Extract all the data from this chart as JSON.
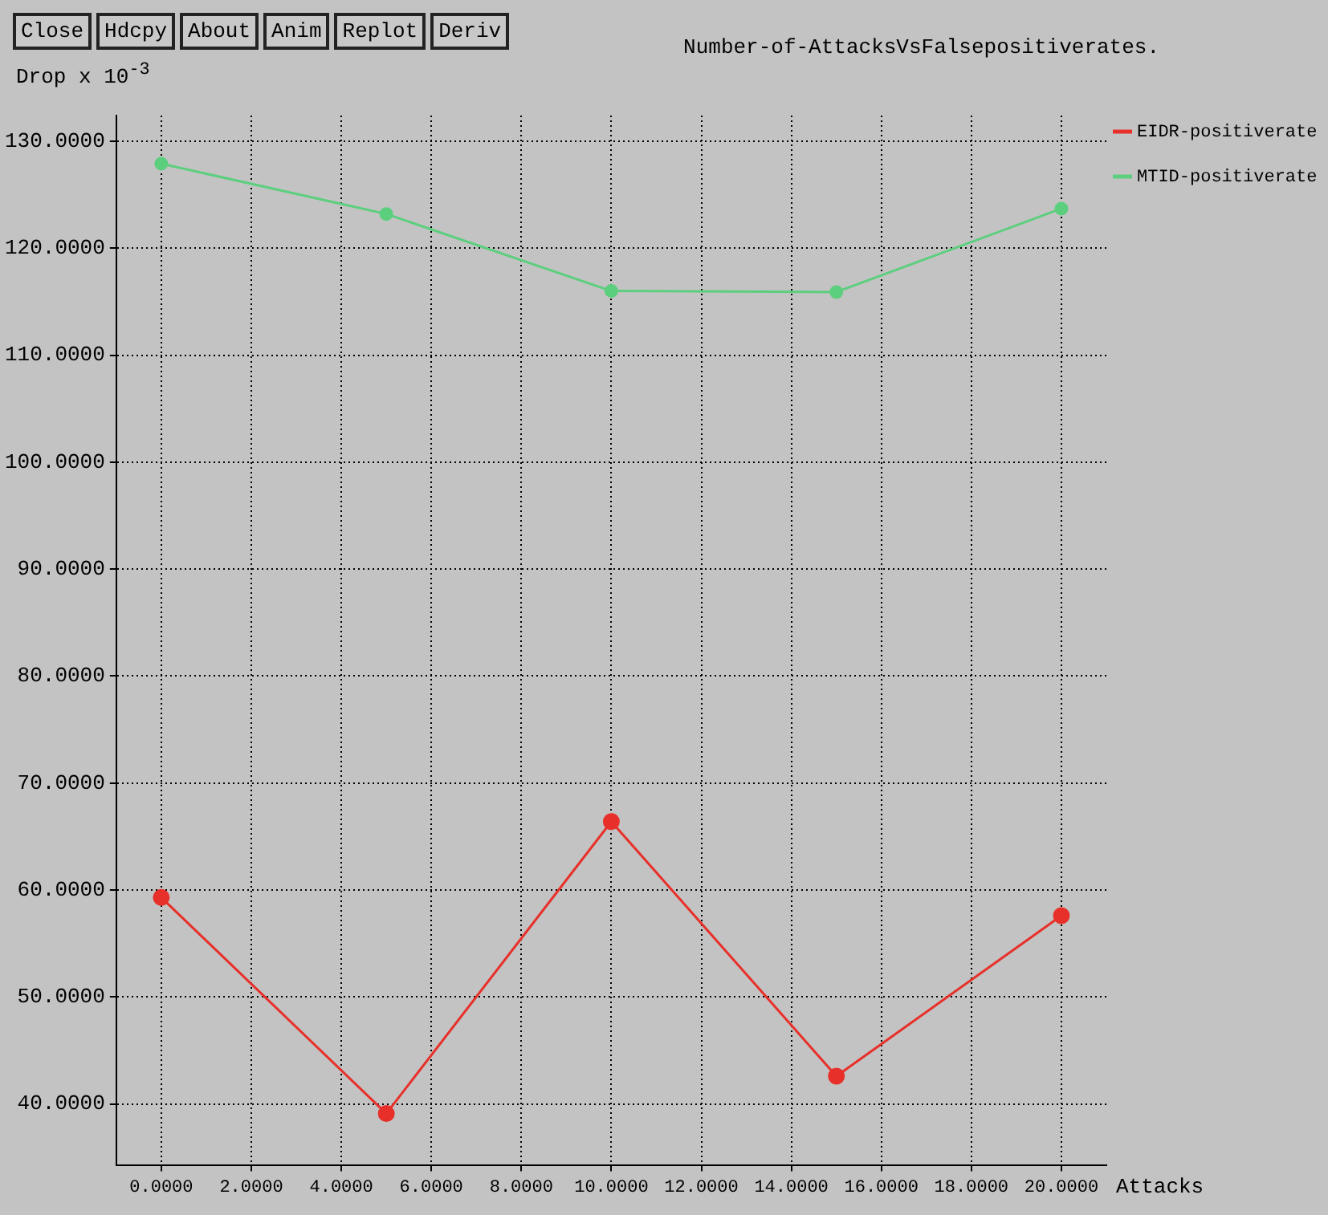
{
  "chart_data": {
    "type": "line",
    "title": "Number-of-AttacksVsFalsepositiverates.",
    "xlabel": "Attacks",
    "ylabel": "Drop x 10$^{-3}$",
    "annotations": [
      "Close",
      "Hdcpy",
      "About",
      "Anim",
      "Replot",
      "Deriv"
    ],
    "x": [
      0,
      5,
      10,
      15,
      20
    ],
    "series": [
      {
        "name": "EIDR-positiverate",
        "color": "#e8302a",
        "values": [
          59.3,
          39.1,
          66.4,
          42.6,
          57.6
        ]
      },
      {
        "name": "MTID-positiverate",
        "color": "#5ccf7e",
        "values": [
          127.9,
          123.2,
          116.0,
          115.9,
          123.7
        ]
      }
    ],
    "xlim": [
      -1,
      21
    ],
    "xticks": [
      {
        "value": 0,
        "label": "0.0000"
      },
      {
        "value": 2,
        "label": "2.0000"
      },
      {
        "value": 4,
        "label": "4.0000"
      },
      {
        "value": 6,
        "label": "6.0000"
      },
      {
        "value": 8,
        "label": "8.0000"
      },
      {
        "value": 10,
        "label": "10.0000"
      },
      {
        "value": 12,
        "label": "12.0000"
      },
      {
        "value": 14,
        "label": "14.0000"
      },
      {
        "value": 16,
        "label": "16.0000"
      },
      {
        "value": 18,
        "label": "18.0000"
      },
      {
        "value": 20,
        "label": "20.0000"
      }
    ],
    "ylim": [
      34.3,
      132.4
    ],
    "yticks": [
      {
        "value": 40,
        "label": "40.0000"
      },
      {
        "value": 50,
        "label": "50.0000"
      },
      {
        "value": 60,
        "label": "60.0000"
      },
      {
        "value": 70,
        "label": "70.0000"
      },
      {
        "value": 80,
        "label": "80.0000"
      },
      {
        "value": 90,
        "label": "90.0000"
      },
      {
        "value": 100,
        "label": "100.0000"
      },
      {
        "value": 110,
        "label": "110.0000"
      },
      {
        "value": 120,
        "label": "120.0000"
      },
      {
        "value": 130,
        "label": "130.0000"
      }
    ],
    "grid": true,
    "legend": "right",
    "marker": "circle",
    "line_style": "solid"
  }
}
